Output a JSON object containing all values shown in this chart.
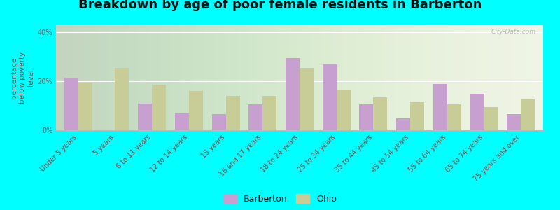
{
  "title": "Breakdown by age of poor female residents in Barberton",
  "ylabel": "percentage\nbelow poverty\nlevel",
  "categories": [
    "Under 5 years",
    "5 years",
    "6 to 11 years",
    "12 to 14 years",
    "15 years",
    "16 and 17 years",
    "18 to 24 years",
    "25 to 34 years",
    "35 to 44 years",
    "45 to 54 years",
    "55 to 64 years",
    "65 to 74 years",
    "75 years and over"
  ],
  "barberton_values": [
    21.5,
    0,
    11.0,
    7.0,
    6.5,
    10.5,
    29.5,
    27.0,
    10.5,
    5.0,
    19.0,
    15.0,
    6.5
  ],
  "ohio_values": [
    19.5,
    25.5,
    18.5,
    16.0,
    14.0,
    14.0,
    25.5,
    16.5,
    13.5,
    11.5,
    10.5,
    9.5,
    12.5
  ],
  "barberton_color": "#c8a0d0",
  "ohio_color": "#c8cc96",
  "background_color": "#00ffff",
  "yticks": [
    0,
    20,
    40
  ],
  "ytick_labels": [
    "0%",
    "20%",
    "40%"
  ],
  "ylim": [
    0,
    43
  ],
  "bar_width": 0.38,
  "title_fontsize": 13,
  "axis_label_fontsize": 7.5,
  "tick_fontsize": 7,
  "legend_fontsize": 9
}
